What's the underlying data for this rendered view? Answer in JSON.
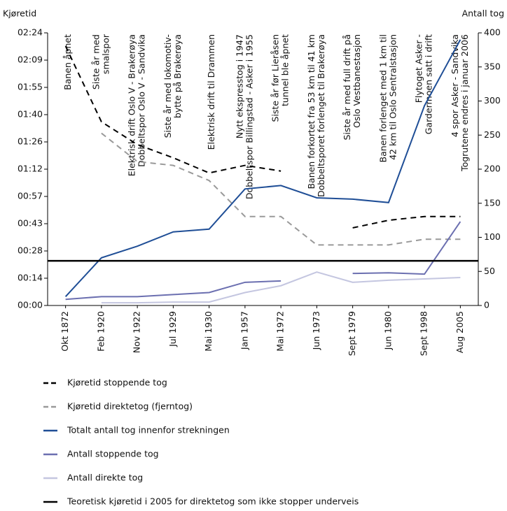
{
  "chart_data": {
    "type": "line",
    "y_label": "Kjøretid",
    "y2_label": "Antall tog",
    "categories": [
      "Okt 1872",
      "Feb 1920",
      "Nov 1922",
      "Jul 1929",
      "Mai 1930",
      "Jan 1957",
      "Mai 1972",
      "Jun 1973",
      "Sept 1979",
      "Jun 1980",
      "Sept 1998",
      "Aug 2005"
    ],
    "annotations": [
      [
        "Banen åpnet"
      ],
      [
        "Siste år med",
        "smalspor"
      ],
      [
        "Elektrisk drift Oslo V - Brakerøya",
        "Dobbeltspor Oslo V - Sandvika"
      ],
      [
        "Siste år med lokomotiv-",
        "bytte på Brakerøya"
      ],
      [
        "Elektrisk drift til Drammen"
      ],
      [
        "Nytt ekspresstog i 1947",
        "Dobbeltspor Billingstad - Asker i 1955"
      ],
      [
        "Siste år før Lieråsen",
        "tunnel ble åpnet"
      ],
      [
        "Banen forkortet fra 53 km til 41 km",
        "Dobbeltsporet forlenget til Brakerøya"
      ],
      [
        "Siste år med full drift på",
        "Oslo Vestbanestasjon"
      ],
      [
        "Banen forlenget med 1 km til",
        "42 km til Oslo Sentralstasjon"
      ],
      [
        "Flytoget Asker -",
        "Gardermoen satt i drift"
      ],
      [
        "4 spor Asker - Sandvika",
        "Togrutene endres i januar 2006"
      ]
    ],
    "ylim": [
      0,
      144
    ],
    "yticks": [
      {
        "value": 0,
        "label": "00:00"
      },
      {
        "value": 14.4,
        "label": "00:14"
      },
      {
        "value": 28.8,
        "label": "00:28"
      },
      {
        "value": 43.2,
        "label": "00:43"
      },
      {
        "value": 57.6,
        "label": "00:57"
      },
      {
        "value": 72,
        "label": "01:12"
      },
      {
        "value": 86.4,
        "label": "01:26"
      },
      {
        "value": 100.8,
        "label": "01:40"
      },
      {
        "value": 115.2,
        "label": "01:55"
      },
      {
        "value": 129.6,
        "label": "02:09"
      },
      {
        "value": 144,
        "label": "02:24"
      }
    ],
    "y2lim": [
      0,
      400
    ],
    "y2ticks": [
      0,
      50,
      100,
      150,
      200,
      250,
      300,
      350,
      400
    ],
    "series": [
      {
        "name": "Kjøretid stoppende tog",
        "color": "#000000",
        "dashed": true,
        "values": [
          137,
          97,
          85,
          78,
          70,
          74,
          71,
          null,
          41,
          45,
          47,
          47
        ]
      },
      {
        "name": "Kjøretid direktetog (fjerntog)",
        "color": "#999999",
        "dashed": true,
        "values": [
          null,
          91,
          76,
          74,
          66,
          47,
          47,
          32,
          32,
          32,
          35,
          35
        ]
      },
      {
        "name": "Totalt antall tog innenfor strekningen",
        "color": "#1f4e96",
        "axis": "y2",
        "values": [
          13,
          70,
          87,
          108,
          112,
          171,
          176,
          158,
          156,
          151,
          293,
          390
        ]
      },
      {
        "name": "Antall stoppende tog",
        "color": "#6b6fb0",
        "axis": "y2",
        "values": [
          9,
          13,
          13,
          16,
          19,
          34,
          36,
          null,
          47,
          48,
          46,
          123
        ]
      },
      {
        "name": "Antall direkte tog",
        "color": "#c4c6e0",
        "axis": "y2",
        "values": [
          null,
          4,
          4,
          5,
          5,
          19,
          29,
          49,
          34,
          37,
          39,
          41
        ]
      }
    ],
    "hlines": [
      {
        "name": "Teoretisk kjøretid i 2005 for direktetog som ikke stopper underveis",
        "color": "#000000",
        "value": 23.6
      }
    ]
  }
}
